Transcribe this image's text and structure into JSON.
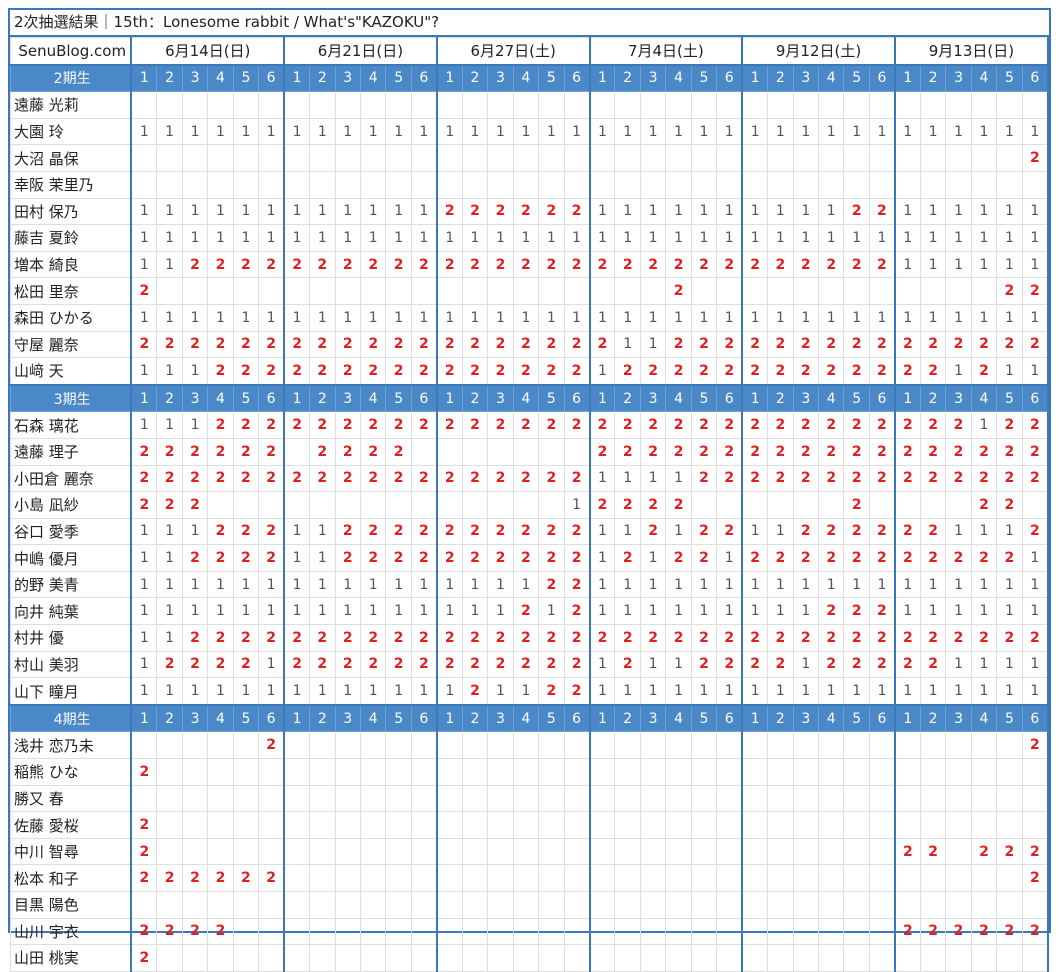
{
  "title": "2次抽選結果｜15th：Lonesome rabbit / What's\"KAZOKU\"?",
  "site_label": "SenuBlog.com",
  "dates": [
    "6月14日(日)",
    "6月21日(日)",
    "6月27日(土)",
    "7月4日(土)",
    "9月12日(土)",
    "9月13日(日)"
  ],
  "slots": [
    "1",
    "2",
    "3",
    "4",
    "5",
    "6"
  ],
  "colors": {
    "header_bg": "#4a88c8",
    "border": "#3a78b8",
    "value2": "#e02020"
  },
  "groups": [
    {
      "label": "2期生",
      "members": [
        {
          "name": "遠藤 光莉",
          "cells": "...................................."
        },
        {
          "name": "大園 玲",
          "cells": "111111111111111111111111111111111111"
        },
        {
          "name": "大沼 晶保",
          "cells": "...................................2"
        },
        {
          "name": "幸阪 茉里乃",
          "cells": "...................................."
        },
        {
          "name": "田村 保乃",
          "cells": "111111111111222222111111111122111111"
        },
        {
          "name": "藤吉 夏鈴",
          "cells": "111111111111111111111111111111111111"
        },
        {
          "name": "増本 綺良",
          "cells": "112222222222222222222222222222111111"
        },
        {
          "name": "松田 里奈",
          "cells": "2....................2............22"
        },
        {
          "name": "森田 ひかる",
          "cells": "111111111111111111111111111111111111"
        },
        {
          "name": "守屋 麗奈",
          "cells": "222222222222222222211222222222222222"
        },
        {
          "name": "山﨑 天",
          "cells": "111222222222222222122222222222221211"
        }
      ]
    },
    {
      "label": "3期生",
      "members": [
        {
          "name": "石森 璃花",
          "cells": "111222222222222222222222222222222122"
        },
        {
          "name": "遠藤 理子",
          "cells": "222222.2222.......222222222222222222"
        },
        {
          "name": "小田倉 麗奈",
          "cells": "222222222222222222111122222222222222"
        },
        {
          "name": "小島 凪紗",
          "cells": "222..............12222......2....22"
        },
        {
          "name": "谷口 愛季",
          "cells": "111222112222222222112122112222221112"
        },
        {
          "name": "中嶋 優月",
          "cells": "112222112222222222121221222222222221"
        },
        {
          "name": "的野 美青",
          "cells": "111111111111111122111111111111111111"
        },
        {
          "name": "向井 純葉",
          "cells": "111111111111111212111111111222111111"
        },
        {
          "name": "村井 優",
          "cells": "112222222222222222222222222222222222"
        },
        {
          "name": "村山 美羽",
          "cells": "122221222222222222121122221222221111"
        },
        {
          "name": "山下 瞳月",
          "cells": "111111111111121122111111111111111111"
        }
      ]
    },
    {
      "label": "4期生",
      "members": [
        {
          "name": "浅井 恋乃未",
          "cells": ".....2.............................2"
        },
        {
          "name": "稲熊 ひな",
          "cells": "2..................................."
        },
        {
          "name": "勝又 春",
          "cells": "...................................."
        },
        {
          "name": "佐藤 愛桜",
          "cells": "2..................................."
        },
        {
          "name": "中川 智尋",
          "cells": "2.............................22.222"
        },
        {
          "name": "松本 和子",
          "cells": "222222.............................2"
        },
        {
          "name": "目黒 陽色",
          "cells": "...................................."
        },
        {
          "name": "山川 宇衣",
          "cells": "2222..........................222222"
        },
        {
          "name": "山田 桃実",
          "cells": "2..................................."
        }
      ]
    }
  ]
}
